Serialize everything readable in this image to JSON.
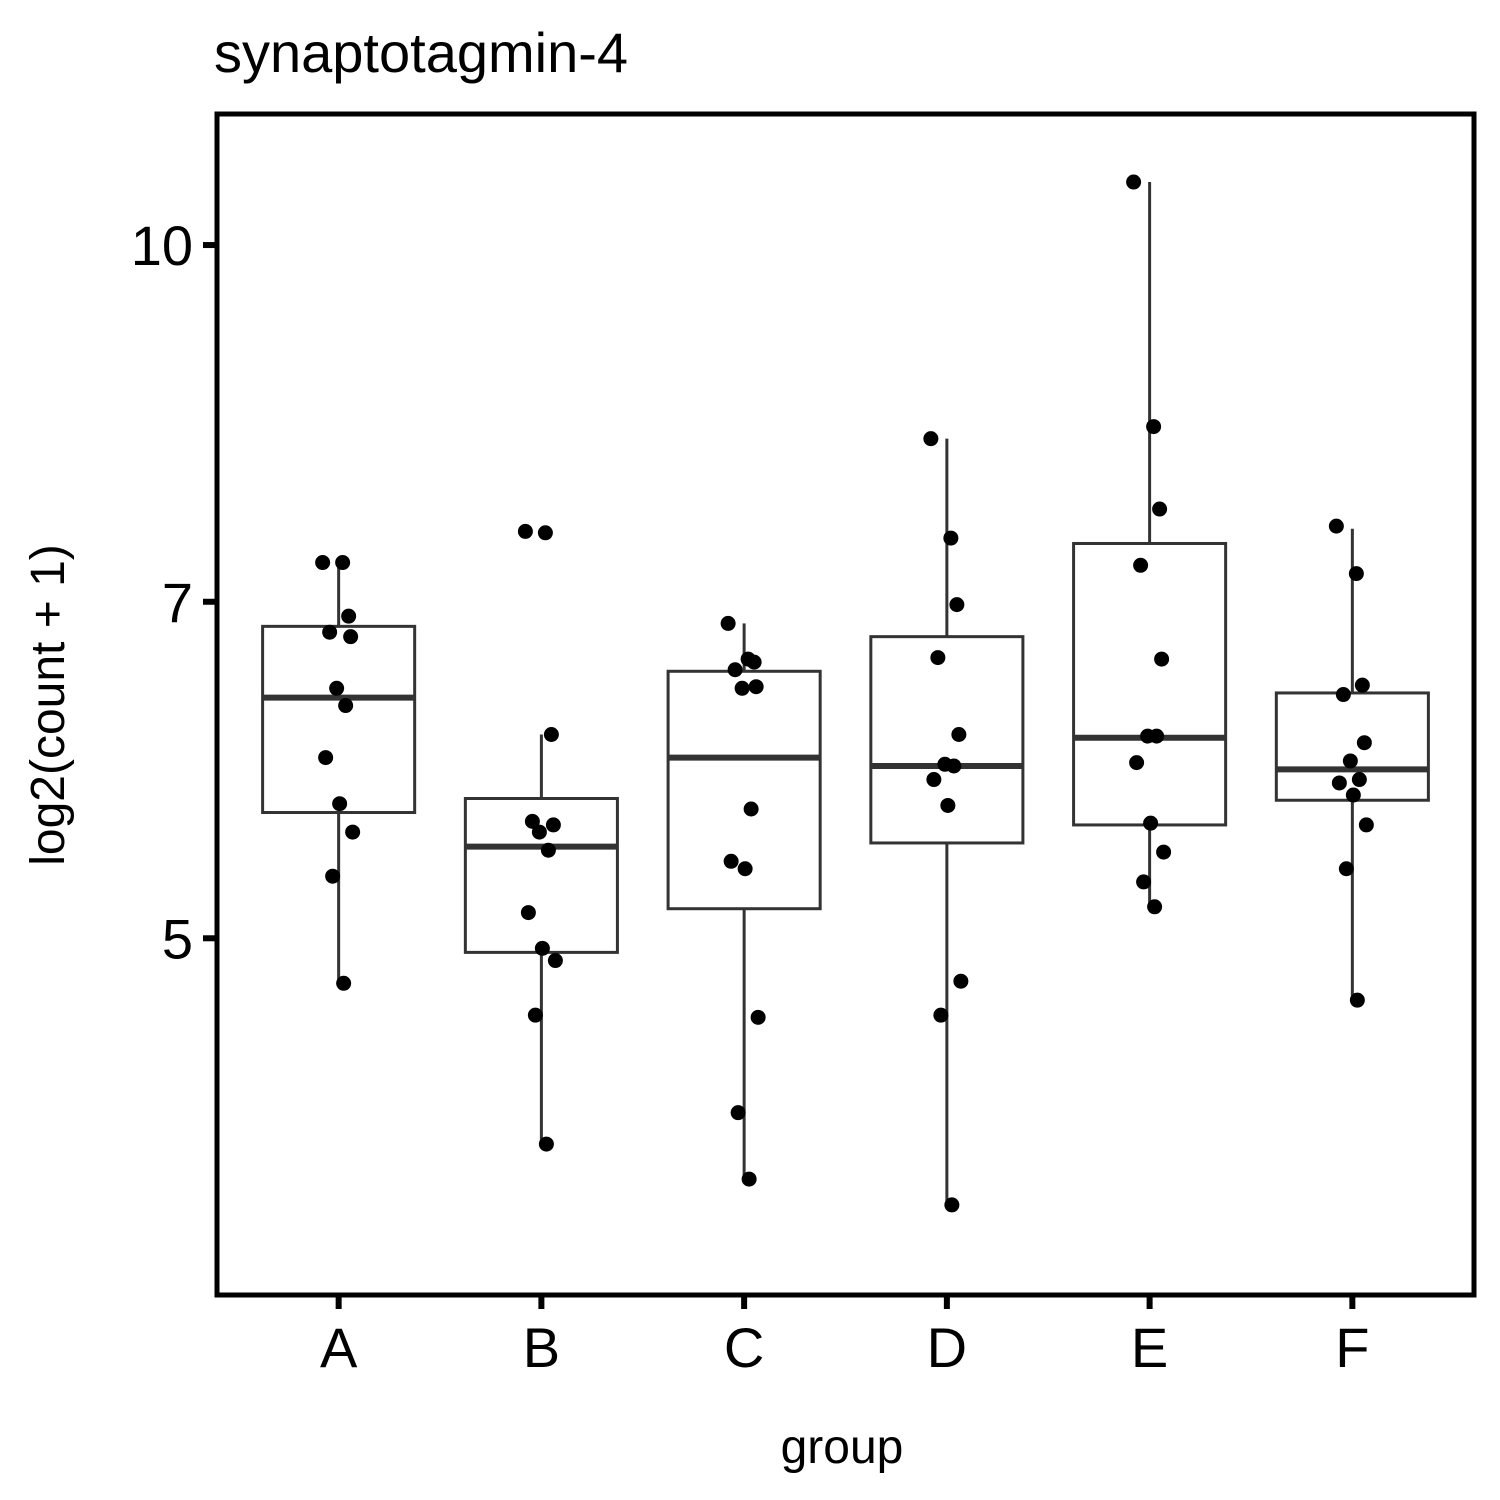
{
  "chart_data": {
    "type": "box",
    "title": "synaptotagmin-4",
    "xlabel": "group",
    "ylabel": "log2(count + 1)",
    "ylim": [
      3.5,
      11.4
    ],
    "y_scale": "log2",
    "yticks": [
      5,
      7,
      10
    ],
    "ytick_labels": [
      "5",
      "7",
      "10"
    ],
    "grid": false,
    "categories": [
      "A",
      "B",
      "C",
      "D",
      "E",
      "F"
    ],
    "colors": {
      "box": "#333333",
      "points": "#000000",
      "axes": "#000000"
    },
    "boxes": [
      {
        "group": "A",
        "whisker_low": 4.78,
        "q1": 5.67,
        "median": 6.36,
        "q3": 6.83,
        "whisker_high": 7.28
      },
      {
        "group": "B",
        "whisker_low": 4.07,
        "q1": 4.93,
        "median": 5.48,
        "q3": 5.75,
        "whisker_high": 6.13
      },
      {
        "group": "C",
        "whisker_low": 3.93,
        "q1": 5.15,
        "median": 5.99,
        "q3": 6.53,
        "whisker_high": 6.85
      },
      {
        "group": "D",
        "whisker_low": 3.83,
        "q1": 5.5,
        "median": 5.94,
        "q3": 6.76,
        "whisker_high": 8.24
      },
      {
        "group": "E",
        "whisker_low": 5.16,
        "q1": 5.6,
        "median": 6.11,
        "q3": 7.42,
        "whisker_high": 10.65
      },
      {
        "group": "F",
        "whisker_low": 4.7,
        "q1": 5.74,
        "median": 5.92,
        "q3": 6.39,
        "whisker_high": 7.53
      }
    ],
    "points": [
      {
        "group": "A",
        "values": [
          7.28,
          7.28,
          6.9,
          6.79,
          6.76,
          6.42,
          6.31,
          5.99,
          5.72,
          5.56,
          5.32,
          4.78
        ]
      },
      {
        "group": "B",
        "values": [
          7.51,
          7.5,
          6.13,
          5.62,
          5.6,
          5.56,
          5.46,
          5.13,
          4.95,
          4.89,
          4.63,
          4.07
        ]
      },
      {
        "group": "C",
        "values": [
          6.85,
          6.61,
          6.59,
          6.54,
          6.43,
          6.42,
          5.69,
          5.4,
          5.36,
          4.62,
          4.2,
          3.93
        ]
      },
      {
        "group": "D",
        "values": [
          8.24,
          7.46,
          6.98,
          6.62,
          6.13,
          5.95,
          5.94,
          5.86,
          5.71,
          4.79,
          4.63,
          3.83
        ]
      },
      {
        "group": "E",
        "values": [
          10.65,
          8.34,
          7.68,
          7.26,
          6.61,
          6.12,
          6.12,
          5.96,
          5.61,
          5.45,
          5.29,
          5.16
        ]
      },
      {
        "group": "F",
        "values": [
          7.55,
          7.2,
          6.44,
          6.38,
          6.08,
          5.97,
          5.86,
          5.84,
          5.77,
          5.6,
          5.36,
          4.7
        ]
      }
    ]
  }
}
